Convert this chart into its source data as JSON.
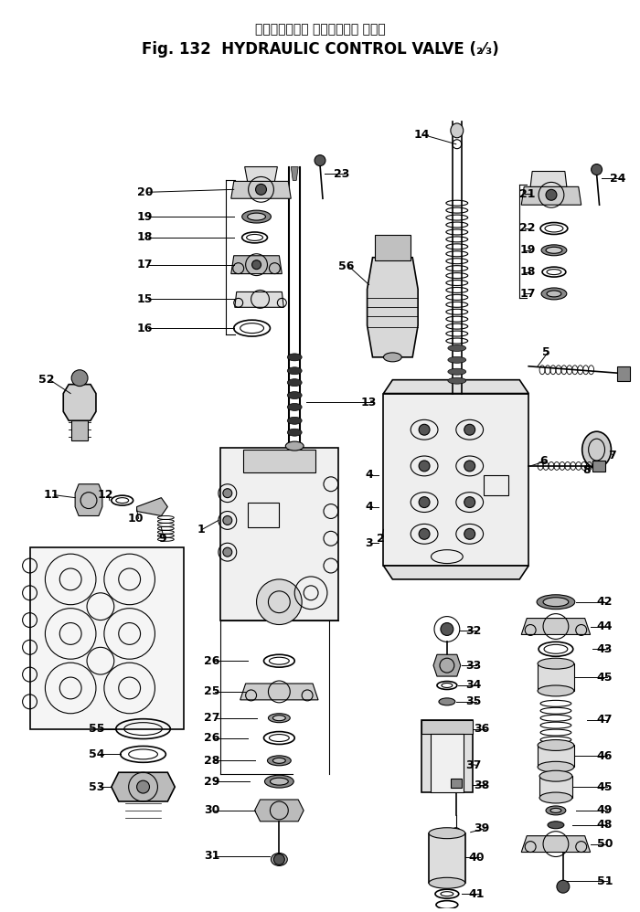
{
  "title_japanese": "ハイドロリック コントロール バルブ",
  "title_english": "Fig. 132  HYDRAULIC CONTROL VALVE (₂⁄₃)",
  "bg": "#ffffff",
  "lc": "#000000",
  "fig_width": 7.0,
  "fig_height": 9.98,
  "dpi": 100
}
